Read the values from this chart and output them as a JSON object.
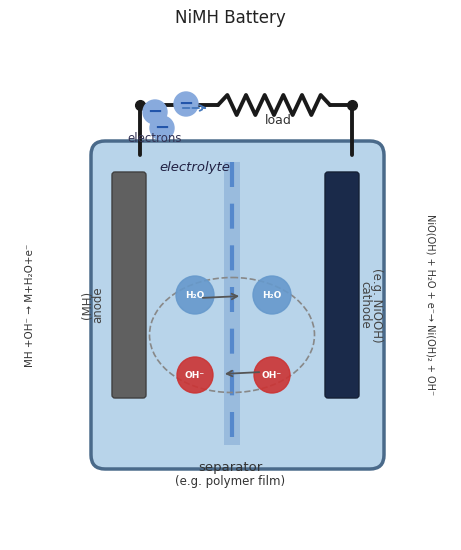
{
  "title": "NiMH Battery",
  "bg_color": "#ffffff",
  "battery_body_color": "#b8d4ea",
  "battery_outline_color": "#4a6a8a",
  "anode_color": "#606060",
  "cathode_color": "#1a2a4a",
  "separator_color": "#5588cc",
  "separator_light": "#99bbdd",
  "electrolyte_label": "electrolyte",
  "separator_label": "separator",
  "separator_sublabel": "(e.g. polymer film)",
  "anode_label": "anode",
  "anode_sublabel": "(MH)",
  "cathode_label": "cathode",
  "cathode_sublabel": "(e.g. NiOOH)",
  "load_label": "load",
  "electrons_label": "electrons",
  "left_reaction": "MH +OH⁻ → M+H₂O+e⁻",
  "right_reaction": "NiO(OH) + H₂O + e⁻→ Ni(OH)₂ + OH⁻",
  "h2o_color": "#6699cc",
  "oh_color": "#cc3333",
  "electron_color": "#88aadd",
  "wire_color": "#1a1a1a",
  "resistor_color": "#1a1a1a"
}
